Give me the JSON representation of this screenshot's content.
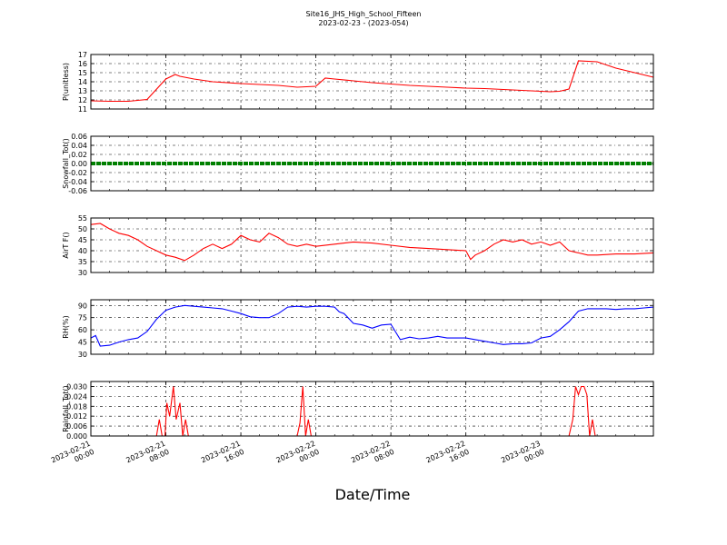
{
  "figure": {
    "title": "Site16_JHS_High_School_Fifteen",
    "subtitle": "2023-02-23 - (2023-054)",
    "xlabel": "Date/Time"
  },
  "chart_data": [
    {
      "type": "line",
      "ylabel": "P(unitless)",
      "ylim": [
        11,
        17
      ],
      "yticks": [
        "11",
        "12",
        "13",
        "14",
        "15",
        "16",
        "17"
      ],
      "x_hours": [
        0,
        2,
        4,
        6,
        8,
        9,
        9.5,
        10,
        11,
        13,
        16,
        20,
        22,
        24,
        25,
        26,
        28,
        30,
        32,
        34,
        36,
        38,
        40,
        42,
        44,
        46,
        48,
        49,
        50,
        51,
        52,
        54,
        56,
        58,
        60
      ],
      "series": [
        {
          "color": "#ff0000",
          "y": [
            11.9,
            11.85,
            11.85,
            12.05,
            14.3,
            14.8,
            14.6,
            14.5,
            14.3,
            14.0,
            13.8,
            13.6,
            13.4,
            13.5,
            14.4,
            14.3,
            14.1,
            13.9,
            13.75,
            13.6,
            13.5,
            13.4,
            13.3,
            13.25,
            13.15,
            13.05,
            12.95,
            12.9,
            12.95,
            13.2,
            16.3,
            16.2,
            15.5,
            15.0,
            14.5
          ]
        }
      ]
    },
    {
      "type": "line",
      "ylabel": "Snowfall_Tot()",
      "ylim": [
        -0.06,
        0.06
      ],
      "yticks": [
        "-0.06",
        "-0.04",
        "-0.02",
        "0.00",
        "0.02",
        "0.04",
        "0.06"
      ],
      "x_hours": [
        0,
        60
      ],
      "series": [
        {
          "color": "#008000",
          "y": [
            0,
            0
          ]
        }
      ]
    },
    {
      "type": "line",
      "ylabel": "AirT F()",
      "ylim": [
        30,
        55
      ],
      "yticks": [
        "30",
        "35",
        "40",
        "45",
        "50",
        "55"
      ],
      "x_hours": [
        0,
        1,
        2,
        3,
        4,
        5,
        6,
        7,
        8,
        9,
        10,
        11,
        12,
        13,
        14,
        15,
        16,
        17,
        18,
        19,
        20,
        21,
        22,
        23,
        24,
        26,
        28,
        30,
        32,
        34,
        36,
        38,
        40,
        40.5,
        41,
        42,
        43,
        44,
        45,
        46,
        47,
        48,
        49,
        50,
        51,
        52,
        53,
        54,
        56,
        58,
        60
      ],
      "series": [
        {
          "color": "#ff0000",
          "y": [
            52,
            52.5,
            50,
            48,
            47,
            45,
            42,
            40,
            38,
            37,
            35.5,
            38,
            41,
            43,
            41,
            43,
            47,
            45,
            44,
            48,
            46,
            43,
            42,
            43,
            42,
            43,
            44,
            43.5,
            42.5,
            41.5,
            41,
            40.5,
            40,
            36,
            38,
            40,
            43,
            45,
            44,
            45,
            43,
            44,
            42.5,
            44,
            40,
            39,
            38,
            38,
            38.5,
            38.5,
            39
          ]
        }
      ]
    },
    {
      "type": "line",
      "ylabel": "RH(%)",
      "ylim": [
        30,
        97
      ],
      "yticks": [
        "30",
        "45",
        "60",
        "75",
        "90"
      ],
      "x_hours": [
        0,
        0.5,
        1,
        2,
        3,
        4,
        5,
        6,
        7,
        8,
        9,
        10,
        11,
        12,
        13,
        14,
        15,
        16,
        17,
        18,
        19,
        20,
        21,
        22,
        23,
        24,
        25,
        26,
        26.5,
        27,
        28,
        29,
        30,
        31,
        32,
        33,
        34,
        35,
        36,
        37,
        38,
        39,
        40,
        41,
        42,
        43,
        44,
        45,
        46,
        47,
        48,
        49,
        50,
        51,
        52,
        53,
        54,
        55,
        56,
        57,
        58,
        59,
        60
      ],
      "series": [
        {
          "color": "#0000ff",
          "y": [
            50,
            53,
            40,
            41,
            45,
            48,
            50,
            58,
            73,
            84,
            88,
            90,
            89,
            88,
            87,
            86,
            83,
            80,
            76,
            75,
            75,
            80,
            88,
            89,
            88,
            89,
            89,
            88,
            82,
            80,
            68,
            66,
            62,
            66,
            67,
            48,
            51,
            49,
            50,
            52,
            50,
            50,
            50,
            48,
            46,
            44,
            42,
            43,
            43,
            44,
            50,
            52,
            60,
            70,
            83,
            86,
            86,
            86,
            85,
            86,
            86,
            87,
            88
          ]
        }
      ]
    },
    {
      "type": "line",
      "ylabel": "Rainfall_Tot()",
      "ylim": [
        0,
        0.033
      ],
      "yticks": [
        "0.000",
        "0.006",
        "0.012",
        "0.018",
        "0.024",
        "0.030"
      ],
      "x_hours": [
        0,
        7,
        7.3,
        7.6,
        7.9,
        8.1,
        8.4,
        8.8,
        9.1,
        9.5,
        9.8,
        10.1,
        10.4,
        10.7,
        22,
        22.3,
        22.6,
        22.9,
        23.2,
        23.5,
        51,
        51.4,
        51.7,
        52,
        52.3,
        52.6,
        52.9,
        53.2,
        53.5,
        53.8,
        60
      ],
      "series": [
        {
          "color": "#ff0000",
          "y": [
            0,
            0,
            0.01,
            0,
            0,
            0.02,
            0.012,
            0.03,
            0.01,
            0.02,
            0,
            0.01,
            0,
            0,
            0,
            0.008,
            0.03,
            0,
            0.01,
            0,
            0,
            0.01,
            0.03,
            0.025,
            0.03,
            0.03,
            0.025,
            0,
            0.01,
            0,
            0
          ]
        }
      ]
    }
  ],
  "x_axis": {
    "range_hours": [
      0,
      60
    ],
    "tick_hours": [
      0,
      8,
      16,
      24,
      32,
      40,
      48
    ],
    "tick_labels": [
      [
        "2023-02-21",
        "00:00"
      ],
      [
        "2023-02-21",
        "08:00"
      ],
      [
        "2023-02-21",
        "16:00"
      ],
      [
        "2023-02-22",
        "00:00"
      ],
      [
        "2023-02-22",
        "08:00"
      ],
      [
        "2023-02-22",
        "16:00"
      ],
      [
        "2023-02-23",
        "00:00"
      ]
    ]
  }
}
